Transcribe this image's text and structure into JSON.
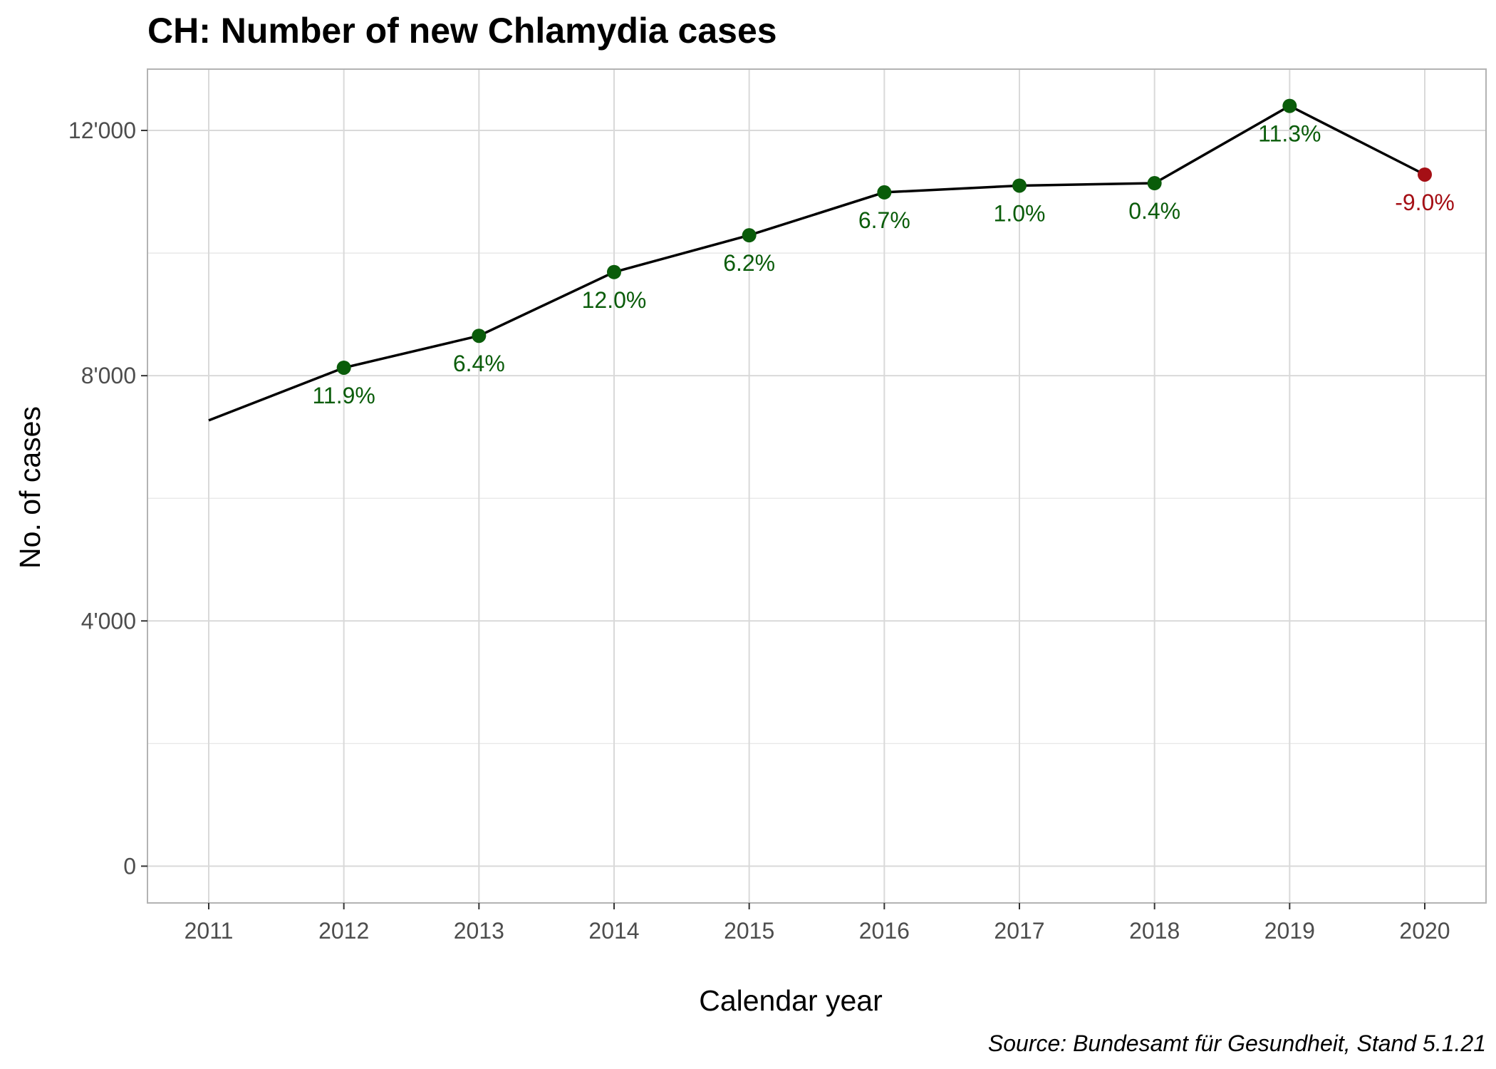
{
  "chart_data": {
    "type": "line",
    "title": "CH: Number of new Chlamydia cases",
    "xlabel": "Calendar year",
    "ylabel": "No. of cases",
    "caption": "Source: Bundesamt für Gesundheit, Stand 5.1.21",
    "x": [
      "2011",
      "2012",
      "2013",
      "2014",
      "2015",
      "2016",
      "2017",
      "2018",
      "2019",
      "2020"
    ],
    "values": [
      7270,
      8130,
      8650,
      9690,
      10290,
      10990,
      11100,
      11140,
      12400,
      11280
    ],
    "labels": [
      "",
      "11.9%",
      "6.4%",
      "12.0%",
      "6.2%",
      "6.7%",
      "1.0%",
      "0.4%",
      "11.3%",
      "-9.0%"
    ],
    "ylim": [
      -600,
      13000
    ],
    "yticks": [
      0,
      4000,
      8000,
      12000
    ],
    "ytick_labels": [
      "0",
      "4'000",
      "8'000",
      "12'000"
    ],
    "grid": true,
    "legend": "none",
    "colors": {
      "line": "#000000",
      "increase": "#0a5c0a",
      "decrease": "#a50f15",
      "grid": "#d9d9d9",
      "panel_border": "#b3b3b3"
    }
  }
}
